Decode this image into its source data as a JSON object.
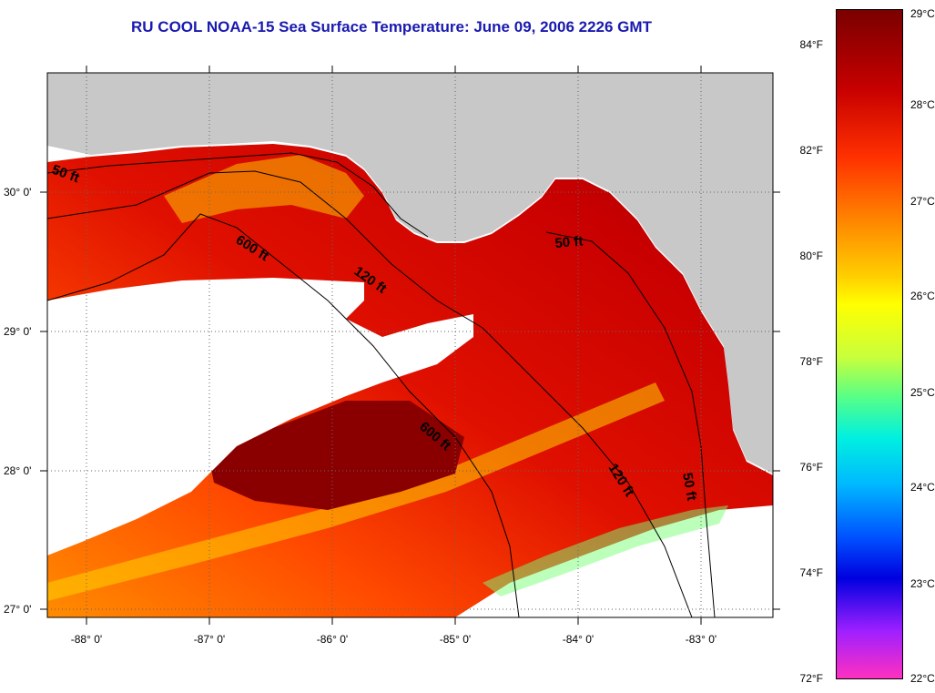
{
  "title": "RU COOL  NOAA-15  Sea Surface Temperature:  June 09, 2006 2226 GMT",
  "lat_labels": [
    "30° 0'",
    "29° 0'",
    "28° 0'",
    "27° 0'"
  ],
  "lon_labels": [
    "-88° 0'",
    "-87° 0'",
    "-86° 0'",
    "-85° 0'",
    "-84° 0'",
    "-83° 0'"
  ],
  "contour_labels": [
    "50 ft",
    "600 ft",
    "120 ft",
    "50 ft",
    "600 ft",
    "120 ft",
    "50 ft"
  ],
  "colorbar": {
    "fahrenheit": [
      "84°F",
      "82°F",
      "80°F",
      "78°F",
      "76°F",
      "74°F",
      "72°F"
    ],
    "celsius": [
      "29°C",
      "28°C",
      "27°C",
      "26°C",
      "25°C",
      "24°C",
      "23°C",
      "22°C"
    ]
  },
  "colors": {
    "land": "#c8c8c8",
    "cloud": "#ffffff",
    "title": "#1a1ab0",
    "sst_warm": "#c00000",
    "sst_hot": "#8a0000",
    "sst_mid": "#ff7a00",
    "sst_cool": "#ffd400"
  }
}
